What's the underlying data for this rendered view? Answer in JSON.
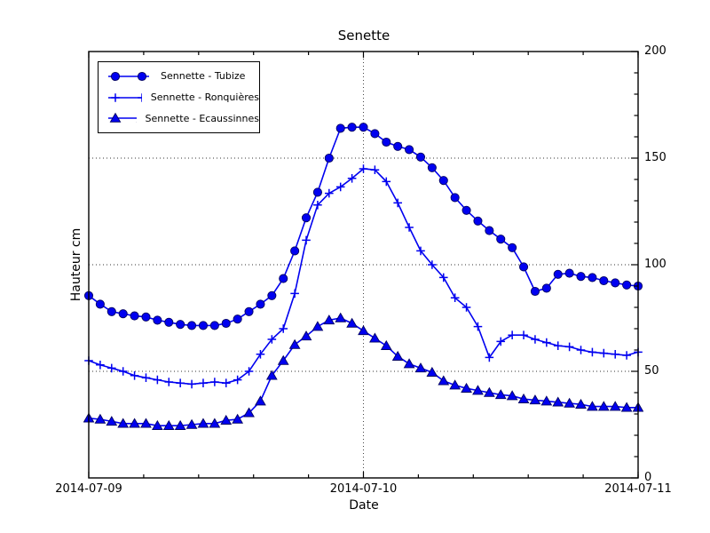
{
  "chart_data": {
    "type": "line",
    "title": "Senette",
    "xlabel": "Date",
    "ylabel": "Hauteur cm",
    "x_tick_labels": [
      "2014-07-09",
      "2014-07-10",
      "2014-07-11"
    ],
    "x_range_hours": 48,
    "sample_interval_hours": 1,
    "y_ticks": [
      0,
      50,
      100,
      150,
      200
    ],
    "ylim": [
      0,
      200
    ],
    "grid": {
      "horizontal_at": [
        50,
        100,
        150
      ],
      "vertical_at_hours": [
        24
      ],
      "style": "dotted"
    },
    "minor_ticks": {
      "x_subdivisions_per_day": 5,
      "y_step": 10
    },
    "legend_position": "upper-left",
    "colors": {
      "line": "#0000f0",
      "marker_fill": "#0000f0",
      "marker_edge": "#000060",
      "text": "#000000"
    },
    "series": [
      {
        "name": "Sennette - Tubize",
        "marker": "circle",
        "values": [
          85.5,
          81.5,
          78,
          77,
          76,
          75.5,
          74,
          73,
          72,
          71.5,
          71.5,
          71.5,
          72.5,
          74.5,
          78,
          81.5,
          85.5,
          93.5,
          106.5,
          122,
          134,
          150,
          164,
          164.5,
          164.5,
          161.5,
          157.5,
          155.5,
          154,
          150.5,
          145.5,
          139.5,
          131.5,
          125.5,
          120.5,
          116,
          112,
          108,
          99,
          87.5,
          89,
          95.5,
          96,
          94.5,
          94,
          92.5,
          91.5,
          90.5,
          90
        ]
      },
      {
        "name": "Sennette - Ronquières",
        "marker": "plus",
        "values": [
          55,
          53,
          51.5,
          50,
          48,
          47,
          46,
          45,
          44.5,
          44,
          44.5,
          45,
          44.5,
          46,
          50,
          58,
          65,
          70,
          86.5,
          111.5,
          128,
          133.5,
          136.5,
          140.5,
          145,
          144.5,
          139,
          129,
          117.5,
          106.5,
          100,
          94,
          84.5,
          80,
          71,
          56.5,
          64,
          67,
          67,
          65,
          63.5,
          62,
          61.5,
          60,
          59,
          58.5,
          58,
          57.5,
          59
        ]
      },
      {
        "name": "Sennette - Ecaussinnes",
        "marker": "triangle",
        "values": [
          28,
          27.5,
          26.5,
          25.5,
          25.5,
          25.5,
          24.5,
          24.5,
          24.5,
          25,
          25.5,
          25.5,
          27,
          27.5,
          30.5,
          36,
          48,
          55,
          62.5,
          66.5,
          71,
          74,
          75,
          72.5,
          69,
          65.5,
          62,
          57,
          53.5,
          51.5,
          49.5,
          45.5,
          43.5,
          42,
          41,
          40,
          39,
          38.5,
          37,
          36.5,
          36,
          35.5,
          35,
          34.5,
          33.5,
          33.5,
          33.5,
          33,
          33
        ]
      }
    ]
  }
}
